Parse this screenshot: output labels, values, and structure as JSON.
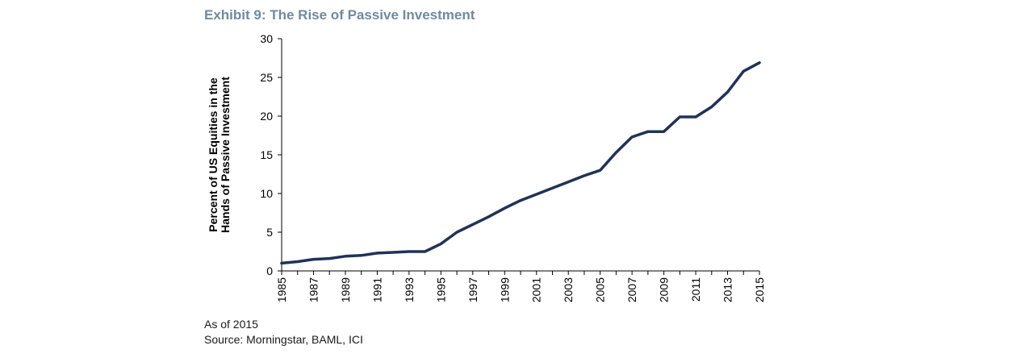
{
  "header": {
    "title": "Exhibit 9: The Rise of Passive Investment"
  },
  "footer": {
    "as_of": "As of 2015",
    "source": "Source: Morningstar, BAML, ICI"
  },
  "chart_data": {
    "type": "line",
    "title": "Exhibit 9: The Rise of Passive Investment",
    "xlabel": "",
    "ylabel_lines": [
      "Percent of US Equities in the",
      "Hands of Passive Investment"
    ],
    "xlim": [
      1985,
      2015
    ],
    "ylim": [
      0,
      30
    ],
    "yticks": [
      0,
      5,
      10,
      15,
      20,
      25,
      30
    ],
    "xticks": [
      1985,
      1987,
      1989,
      1991,
      1993,
      1995,
      1997,
      1999,
      2001,
      2003,
      2005,
      2007,
      2009,
      2011,
      2013,
      2015
    ],
    "grid": false,
    "line_color": "#1f3358",
    "series": [
      {
        "x": [
          1985,
          1986,
          1987,
          1988,
          1989,
          1990,
          1991,
          1992,
          1993,
          1994,
          1995,
          1996,
          1997,
          1998,
          1999,
          2000,
          2001,
          2002,
          2003,
          2004,
          2005,
          2006,
          2007,
          2008,
          2009,
          2010,
          2011,
          2012,
          2013,
          2014,
          2015
        ],
        "values": [
          1.0,
          1.2,
          1.5,
          1.6,
          1.9,
          2.0,
          2.3,
          2.4,
          2.5,
          2.5,
          3.5,
          5.0,
          6.0,
          7.0,
          8.1,
          9.1,
          9.9,
          10.7,
          11.5,
          12.3,
          13.0,
          15.3,
          17.3,
          18.0,
          18.0,
          19.9,
          19.9,
          21.2,
          23.1,
          25.8,
          26.9
        ]
      }
    ]
  }
}
